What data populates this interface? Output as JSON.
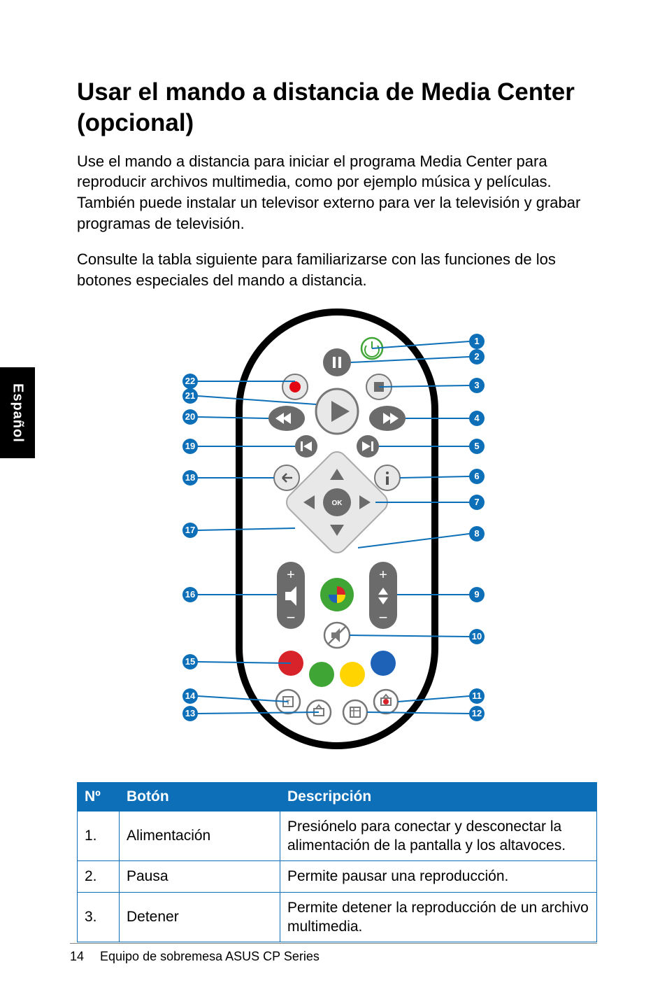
{
  "language_tab": "Español",
  "title": "Usar el mando a distancia de Media Center (opcional)",
  "paragraphs": [
    "Use el mando a distancia para iniciar el programa Media Center para reproducir archivos multimedia, como por ejemplo música y películas. También puede instalar un televisor externo para ver la televisión y grabar programas de televisión.",
    "Consulte la tabla siguiente para familiarizarse con las funciones de los botones especiales del mando a distancia."
  ],
  "table": {
    "headers": {
      "no": "Nº",
      "button": "Botón",
      "description": "Descripción"
    },
    "rows": [
      {
        "no": "1.",
        "button": "Alimentación",
        "description": "Presiónelo para conectar y desconectar la alimentación de la pantalla y los altavoces."
      },
      {
        "no": "2.",
        "button": "Pausa",
        "description": "Permite pausar una reproducción."
      },
      {
        "no": "3.",
        "button": "Detener",
        "description": "Permite detener la reproducción de un archivo multimedia."
      }
    ]
  },
  "footer": {
    "page_number": "14",
    "product": "Equipo de sobremesa ASUS CP Series"
  },
  "diagram": {
    "callout_color": "#0d6fb8",
    "callout_text": "#ffffff",
    "remote_body_fill": "#ffffff",
    "remote_body_stroke": "#000000",
    "button_stroke": "#4d4d4d",
    "button_fill_light": "#e8e8e8",
    "button_fill_dark": "#6b6b6b",
    "green_button": "#3fa535",
    "record_red": "#e30613",
    "colored": {
      "red": "#d8232a",
      "green": "#3fa535",
      "yellow": "#ffd400",
      "blue": "#1d62b7"
    },
    "right_callouts": [
      1,
      2,
      3,
      4,
      5,
      6,
      7,
      8,
      9,
      10,
      11,
      12
    ],
    "left_callouts": [
      22,
      21,
      20,
      19,
      18,
      17,
      16,
      15,
      14,
      13
    ]
  }
}
